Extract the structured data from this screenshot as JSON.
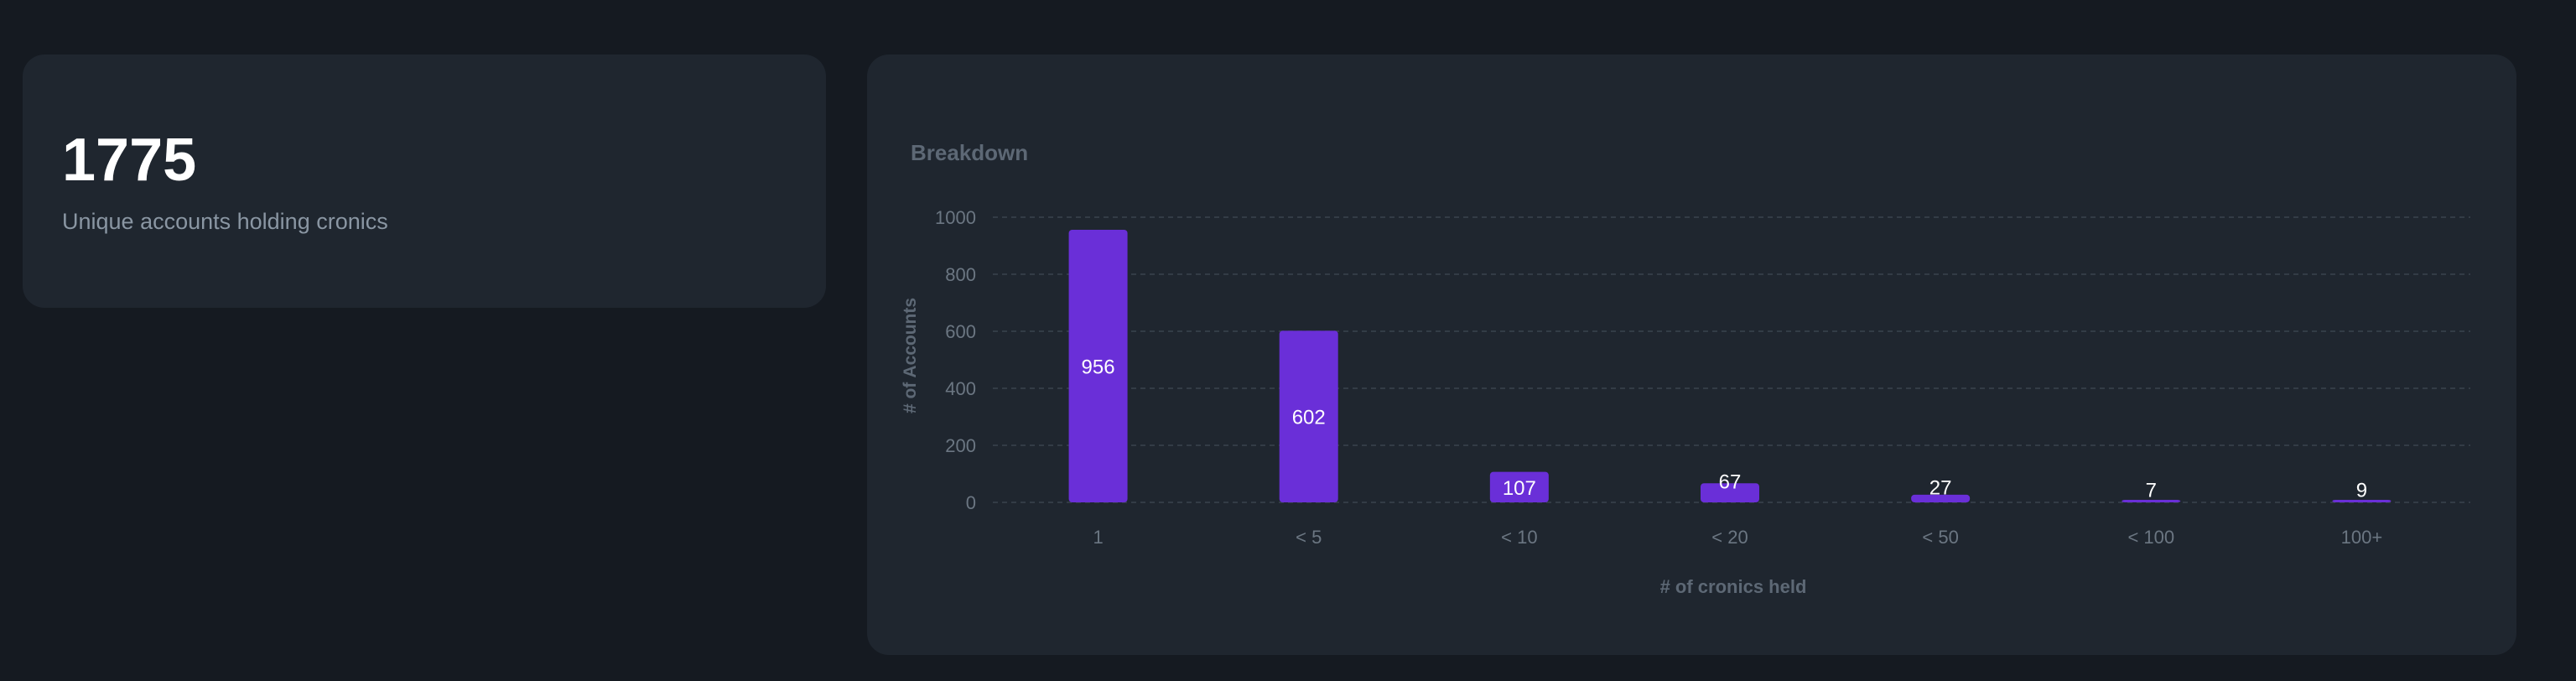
{
  "stat": {
    "value": "1775",
    "label": "Unique accounts holding cronics"
  },
  "chart": {
    "title": "Breakdown"
  },
  "colors": {
    "bar": "#6a2fd8",
    "grid": "#3a434e",
    "tick": "#6b7682",
    "axis_label": "#5d6875",
    "bar_label": "#ffffff"
  },
  "chart_data": {
    "type": "bar",
    "title": "Breakdown",
    "xlabel": "# of cronics held",
    "ylabel": "# of Accounts",
    "categories": [
      "1",
      "< 5",
      "< 10",
      "< 20",
      "< 50",
      "< 100",
      "100+"
    ],
    "values": [
      956,
      602,
      107,
      67,
      27,
      7,
      9
    ],
    "data_labels": [
      "956",
      "602",
      "107",
      "67",
      "27",
      "7",
      "9"
    ],
    "ylim": [
      0,
      1000
    ],
    "yticks": [
      0,
      200,
      400,
      600,
      800,
      1000
    ],
    "grid": true,
    "legend": "none"
  }
}
